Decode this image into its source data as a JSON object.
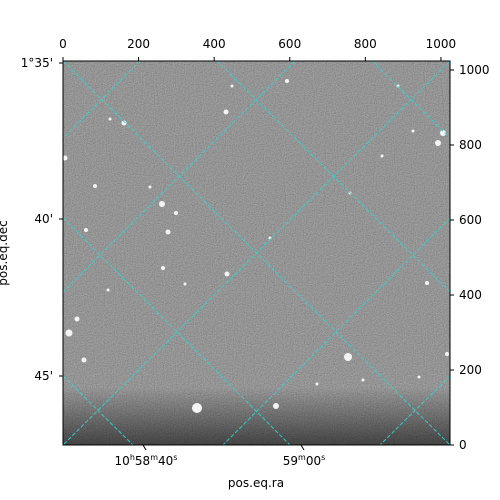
{
  "chart_data": {
    "type": "image",
    "xlabel": "pos.eq.ra",
    "ylabel": "pos.eq.dec",
    "pixel_axes": {
      "x_range": [
        0,
        1024
      ],
      "y_range": [
        0,
        1024
      ],
      "x_ticks": [
        0,
        200,
        400,
        600,
        800,
        1000
      ],
      "y_ticks": [
        0,
        200,
        400,
        600,
        800,
        1000
      ],
      "x_tick_labels": [
        "0",
        "200",
        "400",
        "600",
        "800",
        "1000"
      ],
      "y_tick_labels": [
        "0",
        "200",
        "400",
        "600",
        "800",
        "1000"
      ]
    },
    "world_axes": {
      "ra_tick_labels": [
        {
          "hours": "10",
          "minutes": "58",
          "seconds": "40",
          "sec_suffix": "s"
        },
        {
          "hours": "",
          "minutes": "59",
          "seconds": "00",
          "sec_suffix": "s"
        }
      ],
      "dec_tick_labels": [
        "1°35'",
        "40'",
        "45'"
      ]
    },
    "grid": true,
    "grid_color": "#2fd6d6",
    "image_colormap": "gray"
  }
}
